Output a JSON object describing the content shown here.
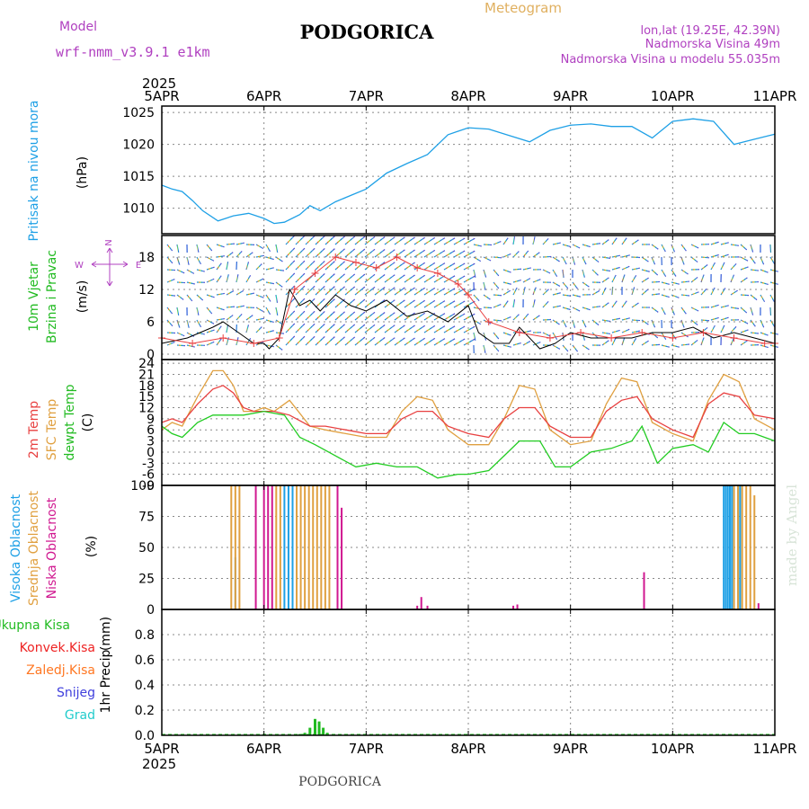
{
  "header": {
    "model_label": "Model",
    "model_name": "wrf-nmm_v3.9.1 e1km",
    "station": "PODGORICA",
    "meteogram": "Meteogram",
    "lonlat": "lon,lat (19.25E, 42.39N)",
    "elevation": "Nadmorska Visina 49m",
    "model_elevation": "Nadmorska Visina u modelu 55.035m",
    "year_top": "2025",
    "year_bottom": "2025",
    "footer_station": "PODGORICA",
    "credit": "made by Angel"
  },
  "colors": {
    "pressure": "#1ea0e6",
    "temp2m": "#e84040",
    "sfc_temp": "#e0a040",
    "dewpt": "#22cc22",
    "high_cloud": "#1ea0e6",
    "mid_cloud": "#e0a040",
    "low_cloud": "#d01890",
    "total_rain": "#22bb22",
    "conv_rain": "#ee2222",
    "frozen_rain": "#ff7722",
    "snow": "#4040dd",
    "hail": "#22cccc",
    "wind_legend": "#b040c0"
  },
  "panels": {
    "pressure": {
      "label": "Pritisak na nivou mora",
      "unit": "(hPa)"
    },
    "wind": {
      "label1": "10m Vjetar",
      "label2": "Brzina i Pravac",
      "unit": "(m/s)",
      "compass_n": "N",
      "compass_e": "E",
      "compass_w": "W"
    },
    "temp": {
      "label1": "2m Temp",
      "label2": "SFC Temp",
      "label3": "dewpt Temp",
      "unit": "(C)"
    },
    "cloud": {
      "label1": "Visoka Oblacnost",
      "label2": "Srednja Oblacnost",
      "label3": "Niska Oblacnost",
      "unit": "(%)"
    },
    "precip": {
      "label": "1hr Precip",
      "unit": "(mm)",
      "legend": [
        "Ukupna Kisa",
        "Konvek.Kisa",
        "Zaledj.Kisa",
        "Snijeg",
        "Grad"
      ]
    }
  },
  "chart_data": [
    {
      "type": "line",
      "title": "Pritisak na nivou mora",
      "ylabel": "(hPa)",
      "x_categories": [
        "5APR",
        "6APR",
        "7APR",
        "8APR",
        "9APR",
        "10APR",
        "11APR"
      ],
      "ylim": [
        1006,
        1026
      ],
      "yticks": [
        1010,
        1015,
        1020,
        1025
      ],
      "series": [
        {
          "name": "Pritisak na nivou mora",
          "x": [
            0,
            0.1,
            0.2,
            0.3,
            0.4,
            0.55,
            0.7,
            0.85,
            1.0,
            1.1,
            1.2,
            1.35,
            1.45,
            1.55,
            1.7,
            1.85,
            2.0,
            2.2,
            2.4,
            2.6,
            2.8,
            3.0,
            3.2,
            3.4,
            3.6,
            3.8,
            4.0,
            4.2,
            4.4,
            4.6,
            4.8,
            5.0,
            5.2,
            5.4,
            5.6,
            5.8,
            6.0
          ],
          "values": [
            1013.6,
            1013.0,
            1012.6,
            1011.2,
            1009.6,
            1008.0,
            1008.8,
            1009.2,
            1008.4,
            1007.6,
            1007.8,
            1009.0,
            1010.4,
            1009.6,
            1011.0,
            1012.0,
            1013.0,
            1015.5,
            1017.0,
            1018.4,
            1021.5,
            1022.6,
            1022.4,
            1021.4,
            1020.4,
            1022.2,
            1023.0,
            1023.2,
            1022.8,
            1022.8,
            1021.0,
            1023.6,
            1024.0,
            1023.6,
            1020.0,
            1020.8,
            1021.6
          ]
        }
      ]
    },
    {
      "type": "line",
      "title": "10m Vjetar Brzina i Pravac",
      "ylabel": "(m/s)",
      "x_categories": [
        "5APR",
        "6APR",
        "7APR",
        "8APR",
        "9APR",
        "10APR",
        "11APR"
      ],
      "ylim": [
        -1,
        22
      ],
      "yticks": [
        0,
        6,
        12,
        18
      ],
      "series": [
        {
          "name": "speed",
          "x": [
            0,
            0.25,
            0.5,
            0.6,
            0.75,
            0.9,
            1.0,
            1.05,
            1.15,
            1.25,
            1.35,
            1.45,
            1.55,
            1.7,
            1.85,
            2.0,
            2.2,
            2.4,
            2.6,
            2.8,
            3.0,
            3.1,
            3.25,
            3.4,
            3.5,
            3.7,
            3.85,
            4.0,
            4.2,
            4.4,
            4.6,
            4.8,
            5.0,
            5.2,
            5.4,
            5.6,
            5.8,
            6.0
          ],
          "values": [
            2,
            3,
            5,
            6,
            4,
            2,
            2,
            1,
            3,
            12,
            9,
            10,
            8,
            11,
            9,
            8,
            10,
            7,
            8,
            6,
            9,
            4,
            2,
            2,
            5,
            1,
            2,
            4,
            3,
            3,
            3,
            4,
            4,
            5,
            3,
            4,
            3,
            2
          ]
        },
        {
          "name": "gust",
          "x": [
            0,
            0.3,
            0.6,
            0.9,
            1.15,
            1.3,
            1.5,
            1.7,
            1.9,
            2.1,
            2.3,
            2.5,
            2.7,
            2.9,
            3.0,
            3.2,
            3.5,
            3.8,
            4.1,
            4.4,
            4.7,
            5.0,
            5.3,
            5.6,
            5.9,
            6.0
          ],
          "values": [
            3,
            2,
            3,
            2,
            3,
            12,
            15,
            18,
            17,
            16,
            18,
            16,
            15,
            13,
            11,
            6,
            4,
            3,
            4,
            3,
            4,
            3,
            4,
            3,
            2,
            2
          ]
        }
      ]
    },
    {
      "type": "line",
      "title": "2m Temp / SFC Temp / dewpt Temp",
      "ylabel": "(C)",
      "x_categories": [
        "5APR",
        "6APR",
        "7APR",
        "8APR",
        "9APR",
        "10APR",
        "11APR"
      ],
      "ylim": [
        -9,
        25
      ],
      "yticks": [
        -9,
        -6,
        -3,
        0,
        3,
        6,
        9,
        12,
        15,
        18,
        21,
        24
      ],
      "series": [
        {
          "name": "2m Temp",
          "x": [
            0,
            0.1,
            0.2,
            0.35,
            0.5,
            0.6,
            0.7,
            0.8,
            0.9,
            1.0,
            1.1,
            1.25,
            1.45,
            1.6,
            1.8,
            2.0,
            2.2,
            2.35,
            2.5,
            2.65,
            2.8,
            3.0,
            3.2,
            3.35,
            3.5,
            3.65,
            3.8,
            4.0,
            4.2,
            4.35,
            4.5,
            4.65,
            4.8,
            5.0,
            5.2,
            5.35,
            5.5,
            5.65,
            5.8,
            6.0
          ],
          "values": [
            8,
            9,
            8,
            13,
            17,
            18,
            16,
            12,
            11,
            11,
            11,
            10,
            7,
            7,
            6,
            5,
            5,
            9,
            11,
            11,
            7,
            5,
            4,
            9,
            12,
            12,
            7,
            4,
            4,
            11,
            14,
            15,
            9,
            6,
            4,
            13,
            16,
            15,
            10,
            9
          ]
        },
        {
          "name": "SFC Temp",
          "x": [
            0,
            0.1,
            0.2,
            0.35,
            0.5,
            0.6,
            0.7,
            0.8,
            0.9,
            1.0,
            1.1,
            1.25,
            1.45,
            1.6,
            1.8,
            2.0,
            2.2,
            2.35,
            2.5,
            2.65,
            2.8,
            3.0,
            3.2,
            3.35,
            3.5,
            3.65,
            3.8,
            4.0,
            4.2,
            4.35,
            4.5,
            4.65,
            4.8,
            5.0,
            5.2,
            5.35,
            5.5,
            5.65,
            5.8,
            6.0
          ],
          "values": [
            6,
            8,
            7,
            15,
            22,
            22,
            18,
            11,
            11,
            12,
            11,
            14,
            7,
            6,
            5,
            4,
            4,
            11,
            15,
            14,
            6,
            2,
            2,
            9,
            18,
            17,
            6,
            2,
            3,
            13,
            20,
            19,
            8,
            5,
            3,
            14,
            21,
            19,
            9,
            6
          ]
        },
        {
          "name": "dewpt Temp",
          "x": [
            0,
            0.1,
            0.2,
            0.35,
            0.5,
            0.6,
            0.8,
            1.0,
            1.2,
            1.35,
            1.5,
            1.7,
            1.9,
            2.1,
            2.3,
            2.5,
            2.7,
            2.9,
            3.0,
            3.2,
            3.35,
            3.5,
            3.7,
            3.85,
            4.0,
            4.2,
            4.4,
            4.6,
            4.7,
            4.85,
            5.0,
            5.2,
            5.35,
            5.5,
            5.65,
            5.8,
            6.0
          ],
          "values": [
            7,
            5,
            4,
            8,
            10,
            10,
            10,
            11,
            10,
            4,
            2,
            -1,
            -4,
            -3,
            -4,
            -4,
            -7,
            -6,
            -6,
            -5,
            -1,
            3,
            3,
            -4,
            -4,
            0,
            1,
            3,
            7,
            -3,
            1,
            2,
            0,
            8,
            5,
            5,
            3
          ]
        }
      ]
    },
    {
      "type": "bar",
      "title": "Visoka / Srednja / Niska Oblacnost",
      "ylabel": "(%)",
      "x_categories": [
        "5APR",
        "6APR",
        "7APR",
        "8APR",
        "9APR",
        "10APR",
        "11APR"
      ],
      "ylim": [
        0,
        100
      ],
      "yticks": [
        0,
        25,
        50,
        75,
        100
      ],
      "series": [
        {
          "name": "Visoka Oblacnost",
          "x": [
            0.72,
            1.2,
            1.24,
            1.28,
            5.5,
            5.52,
            5.54,
            5.56,
            5.58,
            5.6,
            5.64,
            5.66
          ],
          "values": [
            42,
            100,
            100,
            100,
            100,
            100,
            100,
            100,
            100,
            100,
            100,
            100
          ]
        },
        {
          "name": "Srednja Oblacnost",
          "x": [
            0.68,
            0.72,
            0.76,
            1.12,
            1.16,
            1.32,
            1.36,
            1.4,
            1.44,
            1.48,
            1.52,
            1.56,
            1.6,
            1.64,
            5.6,
            5.64,
            5.68,
            5.72,
            5.76,
            5.8
          ],
          "values": [
            100,
            100,
            100,
            100,
            100,
            100,
            100,
            100,
            100,
            100,
            100,
            100,
            100,
            100,
            100,
            100,
            100,
            100,
            100,
            92
          ]
        },
        {
          "name": "Niska Oblacnost",
          "x": [
            0.92,
            1.0,
            1.04,
            1.08,
            1.72,
            1.76,
            2.5,
            2.54,
            2.6,
            3.44,
            3.48,
            4.72,
            5.84
          ],
          "values": [
            100,
            100,
            100,
            100,
            100,
            82,
            3,
            10,
            3,
            3,
            4,
            30,
            5
          ]
        }
      ]
    },
    {
      "type": "bar",
      "title": "1hr Precip",
      "ylabel": "(mm)",
      "x_categories": [
        "5APR",
        "6APR",
        "7APR",
        "8APR",
        "9APR",
        "10APR",
        "11APR"
      ],
      "ylim": [
        0,
        1.0
      ],
      "yticks": [
        0,
        0.2,
        0.4,
        0.6,
        0.8
      ],
      "series": [
        {
          "name": "Ukupna Kisa",
          "x": [
            1.35,
            1.4,
            1.45,
            1.5,
            1.54,
            1.58,
            1.62
          ],
          "values": [
            0.01,
            0.02,
            0.06,
            0.13,
            0.11,
            0.06,
            0.02
          ]
        },
        {
          "name": "Konvek.Kisa",
          "x": [],
          "values": []
        },
        {
          "name": "Zaledj.Kisa",
          "x": [],
          "values": []
        },
        {
          "name": "Snijeg",
          "x": [],
          "values": []
        },
        {
          "name": "Grad",
          "x": [],
          "values": []
        }
      ]
    }
  ]
}
